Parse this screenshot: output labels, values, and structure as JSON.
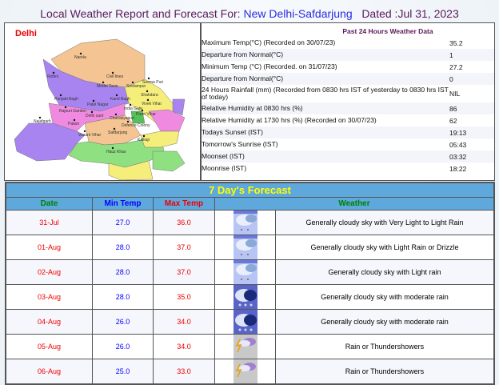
{
  "header": {
    "prefix": "Local Weather Report and Forecast For: ",
    "location": "New Delhi-Safdarjung",
    "dated": "Dated :Jul 31, 2023"
  },
  "map": {
    "title": "Delhi",
    "districts": [
      "Narela",
      "Rohini",
      "Civil lines",
      "Model Town",
      "Seelampur",
      "Shahdara",
      "Punjabi Bagh",
      "Patel Nagar",
      "Karol Bagh",
      "Rajouri Garden",
      "India Gate",
      "Preet Vihar",
      "Najafgarh",
      "Delhi cant",
      "Chanakyapuri",
      "Defence Colony",
      "Palam",
      "Vasant Vihar",
      "Safdarjung",
      "Kalkaji",
      "Hauz Khas",
      "Vivek Vihar",
      "Seema Puri"
    ]
  },
  "past24": {
    "title": "Past 24 Hours Weather Data",
    "rows": [
      {
        "label": "Maximum Temp(°C) (Recorded on 30/07/23)",
        "value": "35.2"
      },
      {
        "label": "Departure from Normal(°C)",
        "value": "1"
      },
      {
        "label": "Minimum Temp (°C) (Recorded. on 31/07/23)",
        "value": "27.2"
      },
      {
        "label": "Departure from Normal(°C)",
        "value": "0"
      },
      {
        "label": "24 Hours Rainfall (mm) (Recorded from 0830 hrs IST of yesterday to 0830 hrs IST of today)",
        "value": "NIL"
      },
      {
        "label": "Relative Humidity at 0830 hrs (%)",
        "value": "86"
      },
      {
        "label": "Relative Humidity at 1730 hrs (%) (Recorded on 30/07/23)",
        "value": "62"
      },
      {
        "label": "Todays Sunset (IST)",
        "value": "19:13"
      },
      {
        "label": "Tomorrow's Sunrise (IST)",
        "value": "05:43"
      },
      {
        "label": "Moonset (IST)",
        "value": "03:32"
      },
      {
        "label": "Moonrise (IST)",
        "value": "18:22"
      }
    ]
  },
  "forecast": {
    "title": "7 Day's Forecast",
    "columns": [
      "Date",
      "Min Temp",
      "Max Temp",
      "Weather"
    ],
    "colors": {
      "date": "#008000",
      "min": "#0000ff",
      "max": "#ff0000"
    },
    "rows": [
      {
        "date": "31-Jul",
        "min": "27.0",
        "max": "36.0",
        "icon": "light-rain",
        "weather": "Generally cloudy sky with Very Light to Light Rain"
      },
      {
        "date": "01-Aug",
        "min": "28.0",
        "max": "37.0",
        "icon": "light-rain",
        "weather": "Generally cloudy sky with Light Rain or Drizzle"
      },
      {
        "date": "02-Aug",
        "min": "28.0",
        "max": "37.0",
        "icon": "light-rain",
        "weather": "Generally cloudy sky with Light rain"
      },
      {
        "date": "03-Aug",
        "min": "28.0",
        "max": "35.0",
        "icon": "moderate-rain",
        "weather": "Generally cloudy sky with moderate rain"
      },
      {
        "date": "04-Aug",
        "min": "26.0",
        "max": "34.0",
        "icon": "moderate-rain",
        "weather": "Generally cloudy sky with moderate rain"
      },
      {
        "date": "05-Aug",
        "min": "26.0",
        "max": "34.0",
        "icon": "thunderstorm",
        "weather": "Rain or Thundershowers"
      },
      {
        "date": "06-Aug",
        "min": "25.0",
        "max": "33.0",
        "icon": "thunderstorm",
        "weather": "Rain or Thundershowers"
      }
    ]
  }
}
